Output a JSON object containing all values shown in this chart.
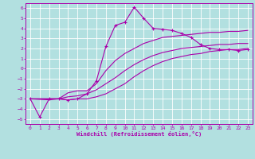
{
  "xlabel": "Windchill (Refroidissement éolien,°C)",
  "bg_color": "#b2e0e0",
  "grid_color": "#ffffff",
  "line_color": "#aa00aa",
  "xlim": [
    -0.5,
    23.5
  ],
  "ylim": [
    -5.5,
    6.5
  ],
  "xticks": [
    0,
    1,
    2,
    3,
    4,
    5,
    6,
    7,
    8,
    9,
    10,
    11,
    12,
    13,
    14,
    15,
    16,
    17,
    18,
    19,
    20,
    21,
    22,
    23
  ],
  "yticks": [
    -5,
    -4,
    -3,
    -2,
    -1,
    0,
    1,
    2,
    3,
    4,
    5,
    6
  ],
  "line1_x": [
    0,
    1,
    2,
    3,
    4,
    5,
    6,
    7,
    8,
    9,
    10,
    11,
    12,
    13,
    14,
    15,
    16,
    17,
    18,
    19,
    20,
    21,
    22,
    23
  ],
  "line1_y": [
    -3.0,
    -4.8,
    -3.0,
    -3.0,
    -3.1,
    -3.0,
    -2.5,
    -1.2,
    2.2,
    4.3,
    4.6,
    6.1,
    5.0,
    4.0,
    3.9,
    3.8,
    3.5,
    3.1,
    2.4,
    2.0,
    1.9,
    1.9,
    1.8,
    1.9
  ],
  "line2_x": [
    0,
    2,
    3,
    4,
    5,
    6,
    7,
    8,
    9,
    10,
    11,
    12,
    13,
    14,
    15,
    16,
    17,
    18,
    19,
    20,
    21,
    22,
    23
  ],
  "line2_y": [
    -3.0,
    -3.0,
    -3.0,
    -2.4,
    -2.2,
    -2.2,
    -1.5,
    -0.2,
    0.8,
    1.5,
    2.0,
    2.5,
    2.8,
    3.1,
    3.2,
    3.3,
    3.4,
    3.5,
    3.6,
    3.6,
    3.7,
    3.7,
    3.8
  ],
  "line3_x": [
    0,
    2,
    3,
    4,
    5,
    6,
    7,
    8,
    9,
    10,
    11,
    12,
    13,
    14,
    15,
    16,
    17,
    18,
    19,
    20,
    21,
    22,
    23
  ],
  "line3_y": [
    -3.0,
    -3.0,
    -3.0,
    -2.8,
    -2.7,
    -2.5,
    -2.1,
    -1.5,
    -0.9,
    -0.2,
    0.4,
    0.9,
    1.3,
    1.6,
    1.8,
    2.0,
    2.1,
    2.2,
    2.3,
    2.4,
    2.4,
    2.5,
    2.5
  ],
  "line4_x": [
    0,
    2,
    3,
    4,
    5,
    6,
    7,
    8,
    9,
    10,
    11,
    12,
    13,
    14,
    15,
    16,
    17,
    18,
    19,
    20,
    21,
    22,
    23
  ],
  "line4_y": [
    -3.0,
    -3.1,
    -3.0,
    -3.1,
    -3.0,
    -3.0,
    -2.8,
    -2.5,
    -2.0,
    -1.5,
    -0.8,
    -0.2,
    0.3,
    0.7,
    1.0,
    1.2,
    1.4,
    1.5,
    1.7,
    1.8,
    1.9,
    1.9,
    2.0
  ]
}
